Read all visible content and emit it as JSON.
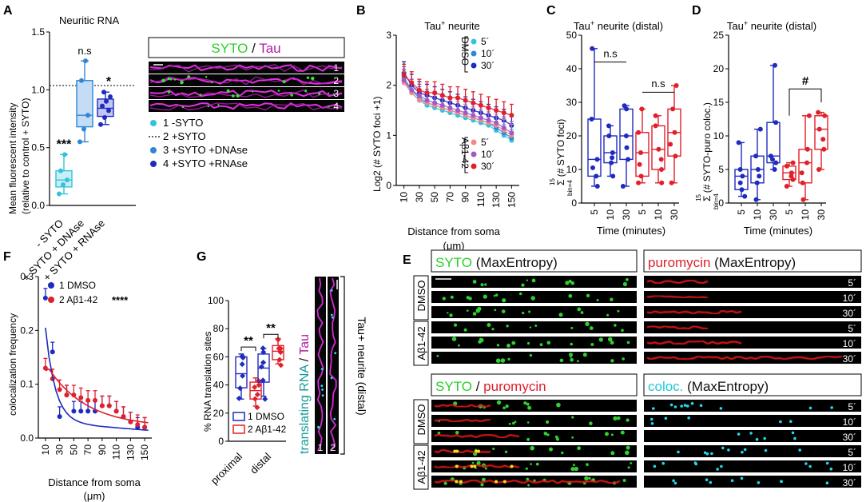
{
  "panels": {
    "A": {
      "letter": "A",
      "title": "Neuritic RNA",
      "ylabel1": "Mean fluorescent intensity",
      "ylabel2": "(relative to control + SYTO)",
      "yticks": [
        "0.0",
        "0.5",
        "1.0",
        "1.5"
      ],
      "xcats": [
        "- SYTO",
        "+ SYTO + DNAse",
        "+ SYTO + RNAse"
      ],
      "sig": [
        "***",
        "n.s",
        "*"
      ],
      "img_title_a": "SYTO",
      "img_title_sep": " / ",
      "img_title_b": "Tau",
      "lane_nums": [
        "1",
        "2",
        "3",
        "4"
      ],
      "legend": [
        "1 -SYTO",
        "2 +SYTO",
        "3 +SYTO +DNAse",
        "4 +SYTO +RNAse"
      ],
      "colors": [
        "#34c3d9",
        "#333333",
        "#2f86d6",
        "#1f2bbf"
      ]
    },
    "B": {
      "letter": "B",
      "title": "Tau",
      "title_sup": "+",
      "title_rest": " neurite",
      "ylabel": "Log2 (# SYTO foci +1)",
      "xlabel1": "Distance from soma",
      "xlabel2": "(μm)",
      "yticks": [
        "0",
        "1",
        "2",
        "3"
      ],
      "xticks": [
        "10",
        "30",
        "50",
        "70",
        "90",
        "110",
        "130",
        "150"
      ],
      "group1": "DMSO",
      "group2": "Aβ1-42",
      "times": [
        "5´",
        "10´",
        "30´"
      ]
    },
    "C": {
      "letter": "C",
      "title": "Tau",
      "title_sup": "+",
      "title_rest": " neurite (distal)",
      "ylabel": "Σ (# SYTO foci)",
      "ylabel_sup": "15",
      "ylabel_sub": "bin=4",
      "yticks": [
        "0",
        "10",
        "20",
        "30",
        "40",
        "50"
      ],
      "xticks": [
        "5",
        "10",
        "30",
        "5",
        "10",
        "30"
      ],
      "xlabel": "Time (minutes)",
      "sig": [
        "n.s",
        "n.s"
      ]
    },
    "D": {
      "letter": "D",
      "title": "Tau",
      "title_sup": "+",
      "title_rest": " neurite (distal)",
      "ylabel": "Σ (# SYTO-puro coloc.)",
      "ylabel_sup": "15",
      "ylabel_sub": "bin=4",
      "yticks": [
        "0",
        "5",
        "10",
        "15",
        "20",
        "25"
      ],
      "xticks": [
        "5",
        "10",
        "30",
        "5",
        "10",
        "30"
      ],
      "xlabel": "Time (minutes)",
      "sig": [
        "#"
      ]
    },
    "E": {
      "letter": "E",
      "h1a": "SYTO",
      "h1b": " (MaxEntropy)",
      "h2a": "puromycin",
      "h2b": " (MaxEntropy)",
      "h3a": "SYTO",
      "h3sep": " / ",
      "h3b": "puromycin",
      "h4a": "coloc.",
      "h4b": " (MaxEntropy)",
      "group1": "DMSO",
      "group2": "Aβ1-42",
      "times": [
        "5´",
        "10´",
        "30´"
      ]
    },
    "F": {
      "letter": "F",
      "ylabel": "colocalization frequency",
      "xlabel1": "Distance from soma",
      "xlabel2": "(μm)",
      "yticks": [
        "0.0",
        "0.1",
        "0.2",
        "0.3"
      ],
      "xticks": [
        "10",
        "30",
        "50",
        "70",
        "90",
        "110",
        "130",
        "150"
      ],
      "legend": [
        "1 DMSO",
        "2 Aβ1-42"
      ],
      "sig": "****"
    },
    "G": {
      "letter": "G",
      "ylabel": "% RNA translation sites",
      "yticks": [
        "0",
        "20",
        "40",
        "60",
        "80",
        "100"
      ],
      "xcats": [
        "proximal",
        "distal"
      ],
      "sig": [
        "**",
        "**"
      ],
      "legend": [
        "1 DMSO",
        "2 Aβ1-42"
      ],
      "side_a": "translating RNA",
      "side_sep": " / ",
      "side_b": "Tau",
      "side_label": "Tau+ neurite (distal)",
      "lane_nums": [
        "1",
        "2"
      ]
    }
  },
  "chart_data": [
    {
      "panel": "A",
      "type": "box",
      "categories": [
        "- SYTO",
        "+ SYTO + DNAse",
        "+ SYTO + RNAse"
      ],
      "boxes": [
        {
          "min": 0.1,
          "q1": 0.16,
          "median": 0.22,
          "q3": 0.3,
          "max": 0.44
        },
        {
          "min": 0.55,
          "q1": 0.68,
          "median": 0.78,
          "q3": 1.08,
          "max": 1.25
        },
        {
          "min": 0.7,
          "q1": 0.77,
          "median": 0.84,
          "q3": 0.92,
          "max": 0.98
        }
      ],
      "points": [
        [
          0.1,
          0.18,
          0.22,
          0.3,
          0.44
        ],
        [
          0.55,
          0.66,
          0.78,
          1.08,
          1.25
        ],
        [
          0.7,
          0.76,
          0.82,
          0.86,
          0.9,
          0.94,
          0.98
        ]
      ],
      "ref_line": 1.0,
      "ylim": [
        0,
        1.5
      ]
    },
    {
      "panel": "B",
      "type": "line",
      "x": [
        10,
        20,
        30,
        40,
        50,
        60,
        70,
        80,
        90,
        100,
        110,
        120,
        130,
        140,
        150
      ],
      "series": [
        {
          "name": "DMSO 5´",
          "color": "#34c3d9",
          "values": [
            2.1,
            1.85,
            1.7,
            1.6,
            1.55,
            1.5,
            1.45,
            1.4,
            1.35,
            1.3,
            1.25,
            1.2,
            1.1,
            1.0,
            0.9
          ]
        },
        {
          "name": "DMSO 10´",
          "color": "#2f86d6",
          "values": [
            2.15,
            1.9,
            1.75,
            1.65,
            1.6,
            1.55,
            1.5,
            1.45,
            1.4,
            1.35,
            1.3,
            1.25,
            1.15,
            1.05,
            0.95
          ]
        },
        {
          "name": "DMSO 30´",
          "color": "#1f2bbf",
          "values": [
            2.25,
            2.0,
            1.85,
            1.8,
            1.75,
            1.7,
            1.65,
            1.6,
            1.55,
            1.5,
            1.45,
            1.4,
            1.35,
            1.3,
            1.2
          ]
        },
        {
          "name": "Aβ1-42 5´",
          "color": "#f08a8a",
          "values": [
            2.05,
            1.85,
            1.7,
            1.65,
            1.6,
            1.55,
            1.5,
            1.45,
            1.4,
            1.35,
            1.3,
            1.25,
            1.2,
            1.1,
            1.0
          ]
        },
        {
          "name": "Aβ1-42 10´",
          "color": "#a05ac8",
          "values": [
            2.1,
            1.9,
            1.8,
            1.7,
            1.65,
            1.6,
            1.55,
            1.5,
            1.45,
            1.4,
            1.35,
            1.3,
            1.25,
            1.15,
            1.05
          ]
        },
        {
          "name": "Aβ1-42 30´",
          "color": "#e0202a",
          "values": [
            2.2,
            2.05,
            1.9,
            1.85,
            1.85,
            1.8,
            1.75,
            1.75,
            1.7,
            1.65,
            1.6,
            1.55,
            1.5,
            1.45,
            1.4
          ]
        }
      ],
      "ylim": [
        0,
        3
      ],
      "xlim": [
        0,
        160
      ]
    },
    {
      "panel": "C",
      "type": "box",
      "categories": [
        "5",
        "10",
        "30",
        "5",
        "10",
        "30"
      ],
      "colors": [
        "#1f2bbf",
        "#1f2bbf",
        "#1f2bbf",
        "#e0202a",
        "#e0202a",
        "#e0202a"
      ],
      "boxes": [
        {
          "min": 5,
          "q1": 8,
          "median": 13,
          "q3": 25,
          "max": 46
        },
        {
          "min": 8,
          "q1": 12,
          "median": 15,
          "q3": 20,
          "max": 23
        },
        {
          "min": 5,
          "q1": 13,
          "median": 20,
          "q3": 28,
          "max": 29
        },
        {
          "min": 6,
          "q1": 8,
          "median": 15,
          "q3": 21,
          "max": 28
        },
        {
          "min": 6,
          "q1": 10,
          "median": 16,
          "q3": 23,
          "max": 26
        },
        {
          "min": 6,
          "q1": 14,
          "median": 21,
          "q3": 28,
          "max": 35
        }
      ],
      "ylim": [
        0,
        50
      ]
    },
    {
      "panel": "D",
      "type": "box",
      "categories": [
        "5",
        "10",
        "30",
        "5",
        "10",
        "30"
      ],
      "colors": [
        "#1f2bbf",
        "#1f2bbf",
        "#1f2bbf",
        "#e0202a",
        "#e0202a",
        "#e0202a"
      ],
      "boxes": [
        {
          "min": 1,
          "q1": 2,
          "median": 4,
          "q3": 5,
          "max": 9
        },
        {
          "min": 0.5,
          "q1": 3,
          "median": 5,
          "q3": 7,
          "max": 11
        },
        {
          "min": 5,
          "q1": 6,
          "median": 7,
          "q3": 12,
          "max": 20.5
        },
        {
          "min": 2.5,
          "q1": 3.5,
          "median": 4.5,
          "q3": 5.5,
          "max": 6
        },
        {
          "min": 0.5,
          "q1": 3,
          "median": 6,
          "q3": 8,
          "max": 13
        },
        {
          "min": 5,
          "q1": 8,
          "median": 11,
          "q3": 13,
          "max": 13.5
        }
      ],
      "ylim": [
        0,
        25
      ]
    },
    {
      "panel": "F",
      "type": "scatter",
      "x": [
        10,
        20,
        30,
        40,
        50,
        60,
        70,
        80,
        90,
        100,
        110,
        120,
        130,
        140,
        150
      ],
      "series": [
        {
          "name": "1 DMSO",
          "color": "#1f2bbf",
          "values": [
            0.26,
            0.16,
            0.04,
            0.08,
            0.05,
            0.05,
            0.05,
            0.05,
            0.06,
            0.06,
            0.05,
            0.04,
            0.03,
            0.02,
            0.02
          ]
        },
        {
          "name": "2 Aβ1-42",
          "color": "#e0202a",
          "values": [
            0.13,
            0.11,
            0.09,
            0.08,
            0.08,
            0.075,
            0.07,
            0.07,
            0.06,
            0.06,
            0.05,
            0.04,
            0.03,
            0.025,
            0.02
          ]
        }
      ],
      "ylim": [
        0,
        0.3
      ],
      "xlim": [
        0,
        160
      ]
    },
    {
      "panel": "G",
      "type": "box",
      "categories": [
        "proximal",
        "distal"
      ],
      "series": [
        {
          "name": "1 DMSO",
          "color": "#1f2bbf",
          "boxes": [
            {
              "min": 30,
              "q1": 38,
              "median": 48,
              "q3": 60,
              "max": 62
            },
            {
              "min": 32,
              "q1": 42,
              "median": 52,
              "q3": 62,
              "max": 66
            }
          ]
        },
        {
          "name": "2 Aβ1-42",
          "color": "#e0202a",
          "boxes": [
            {
              "min": 25,
              "q1": 30,
              "median": 36,
              "q3": 42,
              "max": 45
            },
            {
              "min": 55,
              "q1": 58,
              "median": 64,
              "q3": 68,
              "max": 73
            }
          ]
        }
      ],
      "ylim": [
        0,
        100
      ]
    }
  ]
}
